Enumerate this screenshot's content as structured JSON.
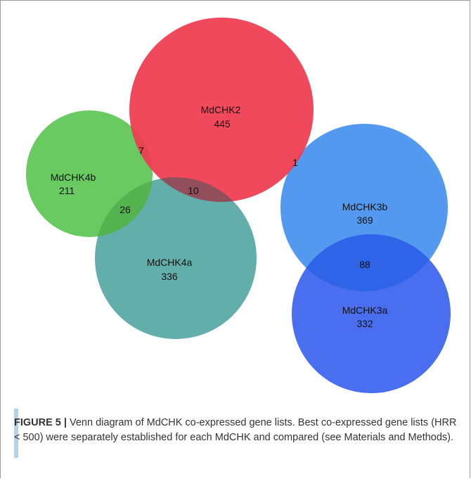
{
  "diagram": {
    "sets": [
      {
        "id": "MdCHK2",
        "label": "MdCHK2",
        "count": "445",
        "color": "#ef3b50"
      },
      {
        "id": "MdCHK4b",
        "label": "MdCHK4b",
        "count": "211",
        "color": "#5cc654"
      },
      {
        "id": "MdCHK4a",
        "label": "MdCHK4a",
        "count": "336",
        "color": "#5aaaa6"
      },
      {
        "id": "MdCHK3b",
        "label": "MdCHK3b",
        "count": "369",
        "color": "#4a94ee"
      },
      {
        "id": "MdCHK3a",
        "label": "MdCHK3a",
        "count": "332",
        "color": "#3f66ee"
      }
    ],
    "intersections": [
      {
        "sets": [
          "MdCHK2",
          "MdCHK4b"
        ],
        "count": "7"
      },
      {
        "sets": [
          "MdCHK2",
          "MdCHK3b"
        ],
        "count": "1"
      },
      {
        "sets": [
          "MdCHK2",
          "MdCHK4a"
        ],
        "count": "10"
      },
      {
        "sets": [
          "MdCHK4b",
          "MdCHK4a"
        ],
        "count": "26"
      },
      {
        "sets": [
          "MdCHK3b",
          "MdCHK3a"
        ],
        "count": "88"
      }
    ]
  },
  "caption": {
    "figure_label": "FIGURE 5 |",
    "text": " Venn diagram of MdCHK co-expressed gene lists. Best co-expressed gene lists (HRR < 500) were separately established for each MdCHK and compared (see Materials and Methods)."
  }
}
